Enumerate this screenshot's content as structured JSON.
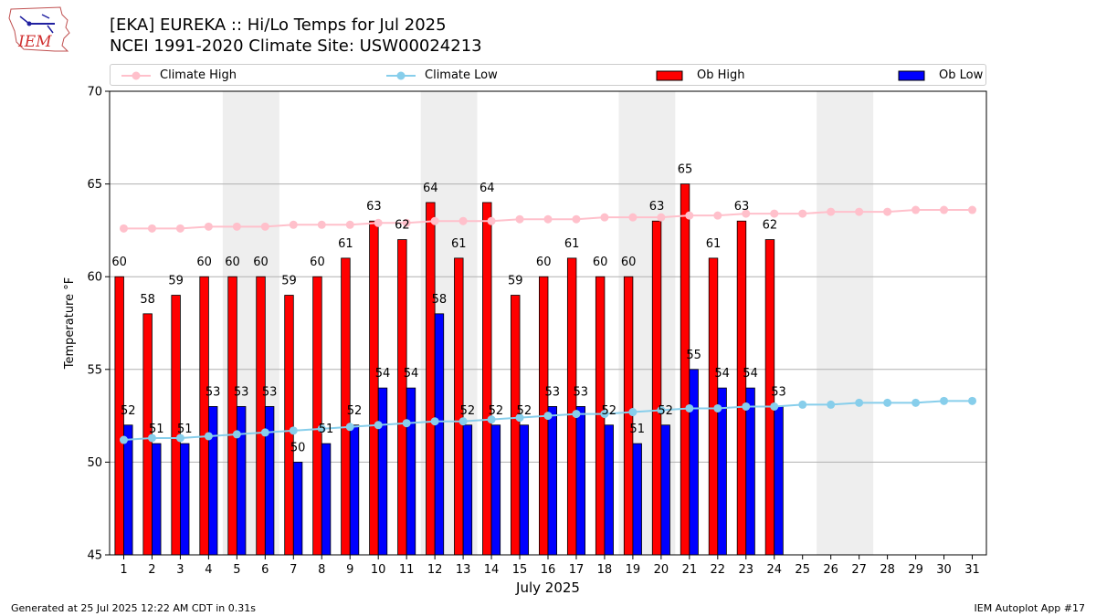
{
  "logo": {
    "text": "IEM"
  },
  "header": {
    "title": "[EKA] EUREKA :: Hi/Lo Temps for Jul 2025",
    "subtitle": "NCEI 1991-2020 Climate Site: USW00024213"
  },
  "legend": {
    "items": [
      {
        "label": "Climate High",
        "kind": "line",
        "color": "#ffc0cb"
      },
      {
        "label": "Climate Low",
        "kind": "line",
        "color": "#87ceeb"
      },
      {
        "label": "Ob High",
        "kind": "bar",
        "color": "#ff0000"
      },
      {
        "label": "Ob Low",
        "kind": "bar",
        "color": "#0000ff"
      }
    ]
  },
  "footer": {
    "left": "Generated at 25 Jul 2025 12:22 AM CDT in 0.31s",
    "right": "IEM Autoplot App #17"
  },
  "chart_data": {
    "type": "bar",
    "xlabel": "July 2025",
    "ylabel": "Temperature °F",
    "ylim": [
      45,
      70
    ],
    "yticks": [
      45,
      50,
      55,
      60,
      65,
      70
    ],
    "grid": "horizontal",
    "legend_position": "top",
    "shaded_days": [
      [
        5,
        6
      ],
      [
        12,
        13
      ],
      [
        19,
        20
      ],
      [
        26,
        27
      ]
    ],
    "days": [
      "1",
      "2",
      "3",
      "4",
      "5",
      "6",
      "7",
      "8",
      "9",
      "10",
      "11",
      "12",
      "13",
      "14",
      "15",
      "16",
      "17",
      "18",
      "19",
      "20",
      "21",
      "22",
      "23",
      "24",
      "25",
      "26",
      "27",
      "28",
      "29",
      "30",
      "31"
    ],
    "series": [
      {
        "name": "Ob High",
        "type": "bar",
        "color": "#ff0000",
        "values": [
          60,
          58,
          59,
          60,
          60,
          60,
          59,
          60,
          61,
          63,
          62,
          64,
          61,
          64,
          59,
          60,
          61,
          60,
          60,
          63,
          65,
          61,
          63,
          62
        ]
      },
      {
        "name": "Ob Low",
        "type": "bar",
        "color": "#0000ff",
        "values": [
          52,
          51,
          51,
          53,
          53,
          53,
          50,
          51,
          52,
          54,
          54,
          58,
          52,
          52,
          52,
          53,
          53,
          52,
          51,
          52,
          55,
          54,
          54,
          53
        ]
      },
      {
        "name": "Climate High",
        "type": "line",
        "color": "#ffc0cb",
        "values": [
          62.6,
          62.6,
          62.6,
          62.7,
          62.7,
          62.7,
          62.8,
          62.8,
          62.8,
          62.9,
          62.9,
          63.0,
          63.0,
          63.0,
          63.1,
          63.1,
          63.1,
          63.2,
          63.2,
          63.2,
          63.3,
          63.3,
          63.4,
          63.4,
          63.4,
          63.5,
          63.5,
          63.5,
          63.6,
          63.6,
          63.6
        ]
      },
      {
        "name": "Climate Low",
        "type": "line",
        "color": "#87ceeb",
        "values": [
          51.2,
          51.3,
          51.3,
          51.4,
          51.5,
          51.6,
          51.7,
          51.8,
          51.9,
          52.0,
          52.1,
          52.2,
          52.2,
          52.3,
          52.4,
          52.5,
          52.6,
          52.6,
          52.7,
          52.8,
          52.9,
          52.9,
          53.0,
          53.0,
          53.1,
          53.1,
          53.2,
          53.2,
          53.2,
          53.3,
          53.3
        ]
      }
    ]
  }
}
